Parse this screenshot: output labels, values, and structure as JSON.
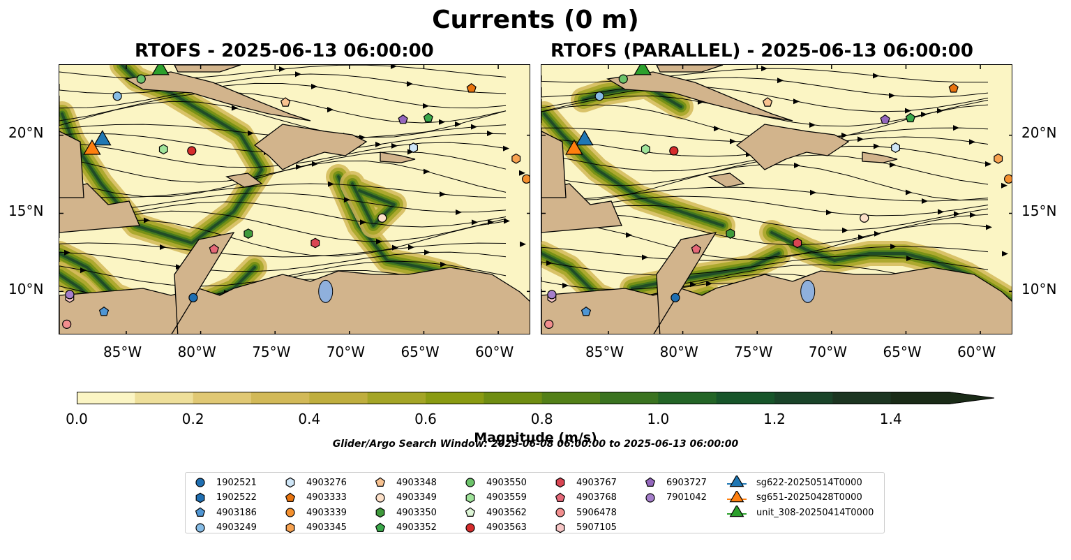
{
  "figure": {
    "title": "Currents (0 m)",
    "panels": [
      {
        "title": "RTOFS - 2025-06-13 06:00:00"
      },
      {
        "title": "RTOFS (PARALLEL) - 2025-06-13 06:00:00"
      }
    ],
    "lat_labels": [
      "20°N",
      "15°N",
      "10°N"
    ],
    "lon_labels": [
      "85°W",
      "80°W",
      "75°W",
      "70°W",
      "65°W",
      "60°W"
    ],
    "colorbar": {
      "label": "Magnitude (m/s)",
      "ticks": [
        "0.0",
        "0.2",
        "0.4",
        "0.6",
        "0.8",
        "1.0",
        "1.2",
        "1.4"
      ]
    },
    "search_window": "Glider/Argo Search Window: 2025-06-08 06:00:00 to 2025-06-13 06:00:00"
  },
  "chart_data": {
    "type": "map",
    "map_extent": {
      "lon": [
        -89.5,
        -57.8
      ],
      "lat": [
        7.2,
        24.5
      ]
    },
    "lon_ticks": [
      -85,
      -80,
      -75,
      -70,
      -65,
      -60
    ],
    "lat_ticks": [
      10,
      15,
      20
    ],
    "colorbar": {
      "min": 0.0,
      "max": 1.5,
      "step": 0.1,
      "extend": "max",
      "colors": [
        "#fbf5c4",
        "#eedf9a",
        "#e0c874",
        "#d2b958",
        "#bfae3e",
        "#a4a526",
        "#8a9b12",
        "#6f8d12",
        "#538018",
        "#3a7320",
        "#236526",
        "#17552a",
        "#1a4429",
        "#1c3521",
        "#1a2b17"
      ]
    },
    "markers": [
      {
        "id": "1902521",
        "shape": "circle",
        "color": "#1f6fb2",
        "lon": -80.5,
        "lat": 9.6
      },
      {
        "id": "1902522",
        "shape": "hexagon",
        "color": "#1f6fb2",
        "lon": null,
        "lat": null
      },
      {
        "id": "4903186",
        "shape": "pentagon",
        "color": "#4f96d4",
        "lon": -86.5,
        "lat": 8.7
      },
      {
        "id": "4903249",
        "shape": "circle",
        "color": "#86bce6",
        "lon": -85.6,
        "lat": 22.5
      },
      {
        "id": "4903276",
        "shape": "hexagon",
        "color": "#cfe6f7",
        "lon": -65.7,
        "lat": 19.2
      },
      {
        "id": "4903333",
        "shape": "pentagon",
        "color": "#e8730e",
        "lon": -61.8,
        "lat": 23.0
      },
      {
        "id": "4903339",
        "shape": "circle",
        "color": "#f4902e",
        "lon": -58.1,
        "lat": 17.2
      },
      {
        "id": "4903345",
        "shape": "hexagon",
        "color": "#f7a250",
        "lon": -58.8,
        "lat": 18.5
      },
      {
        "id": "4903348",
        "shape": "pentagon",
        "color": "#f8c290",
        "lon": -74.3,
        "lat": 22.1
      },
      {
        "id": "4903349",
        "shape": "circle",
        "color": "#fde0c8",
        "lon": -67.8,
        "lat": 14.7
      },
      {
        "id": "4903350",
        "shape": "hexagon",
        "color": "#3f9a3c",
        "lon": -76.8,
        "lat": 13.7
      },
      {
        "id": "4903352",
        "shape": "pentagon",
        "color": "#3aa84a",
        "lon": -64.7,
        "lat": 21.1
      },
      {
        "id": "4903550",
        "shape": "circle",
        "color": "#6cc36a",
        "lon": -84.0,
        "lat": 23.6
      },
      {
        "id": "4903559",
        "shape": "hexagon",
        "color": "#9fe39a",
        "lon": -82.5,
        "lat": 19.1
      },
      {
        "id": "4903562",
        "shape": "pentagon",
        "color": "#ddf5d6",
        "lon": null,
        "lat": null
      },
      {
        "id": "4903563",
        "shape": "circle",
        "color": "#d62c2c",
        "lon": -80.6,
        "lat": 19.0
      },
      {
        "id": "4903767",
        "shape": "hexagon",
        "color": "#d94552",
        "lon": -72.3,
        "lat": 13.1
      },
      {
        "id": "4903768",
        "shape": "pentagon",
        "color": "#e56878",
        "lon": -79.1,
        "lat": 12.7
      },
      {
        "id": "5906478",
        "shape": "circle",
        "color": "#f28e8e",
        "lon": -89.0,
        "lat": 7.9
      },
      {
        "id": "5907105",
        "shape": "hexagon",
        "color": "#f7c6c6",
        "lon": -88.8,
        "lat": 9.6
      },
      {
        "id": "6903727",
        "shape": "pentagon",
        "color": "#9467bd",
        "lon": -66.4,
        "lat": 21.0
      },
      {
        "id": "7901042",
        "shape": "circle",
        "color": "#a57ecb",
        "lon": -88.8,
        "lat": 9.8
      }
    ],
    "gliders": [
      {
        "id": "sg622-20250514T0000",
        "shape": "triangle",
        "color": "#1f77b4",
        "lon": -86.6,
        "lat": 19.8
      },
      {
        "id": "sg651-20250428T0000",
        "shape": "triangle",
        "color": "#ff7f0e",
        "lon": -87.3,
        "lat": 19.2
      },
      {
        "id": "unit_308-20250414T0000",
        "shape": "triangle",
        "color": "#2ca02c",
        "lon": -82.7,
        "lat": 24.3
      }
    ],
    "legend_position": "bottom"
  }
}
